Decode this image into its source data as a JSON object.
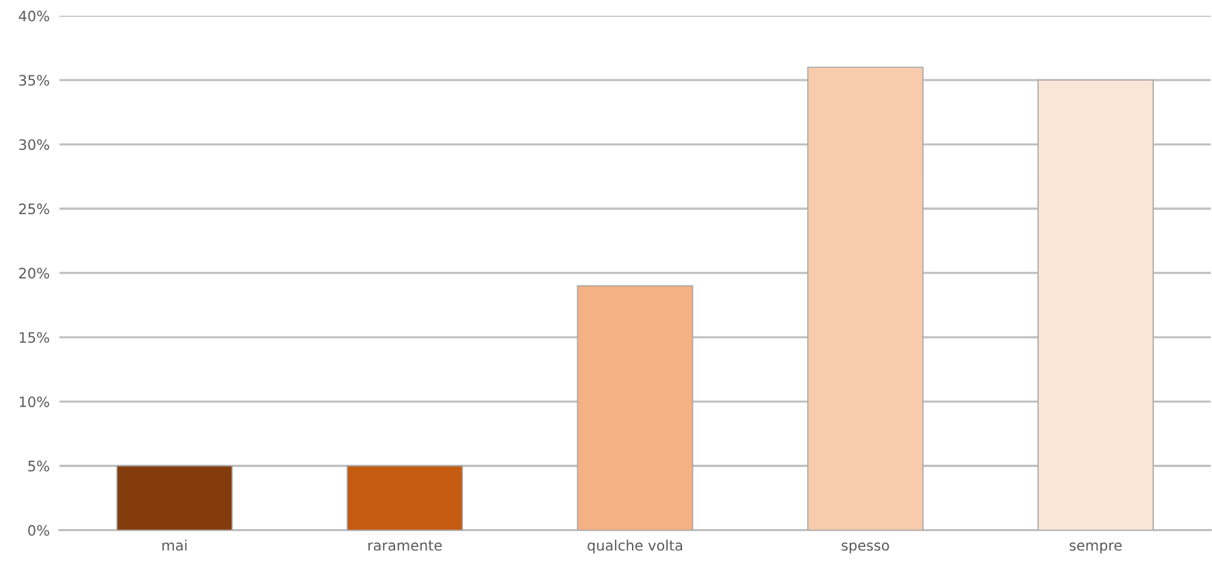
{
  "chart_data": {
    "type": "bar",
    "categories": [
      "mai",
      "raramente",
      "qualche volta",
      "spesso",
      "sempre"
    ],
    "values": [
      5,
      5,
      19,
      36,
      35
    ],
    "colors": [
      "#843c0c",
      "#c55a11",
      "#f4b183",
      "#f8cbad",
      "#fbe5d6"
    ],
    "ylim": [
      0,
      40
    ],
    "yticks": [
      {
        "value": 0,
        "label": "0%"
      },
      {
        "value": 5,
        "label": "5%"
      },
      {
        "value": 10,
        "label": "10%"
      },
      {
        "value": 15,
        "label": "15%"
      },
      {
        "value": 20,
        "label": "20%"
      },
      {
        "value": 25,
        "label": "25%"
      },
      {
        "value": 30,
        "label": "30%"
      },
      {
        "value": 35,
        "label": "35%"
      },
      {
        "value": 40,
        "label": "40%"
      }
    ],
    "grid": "y",
    "legend": false
  }
}
